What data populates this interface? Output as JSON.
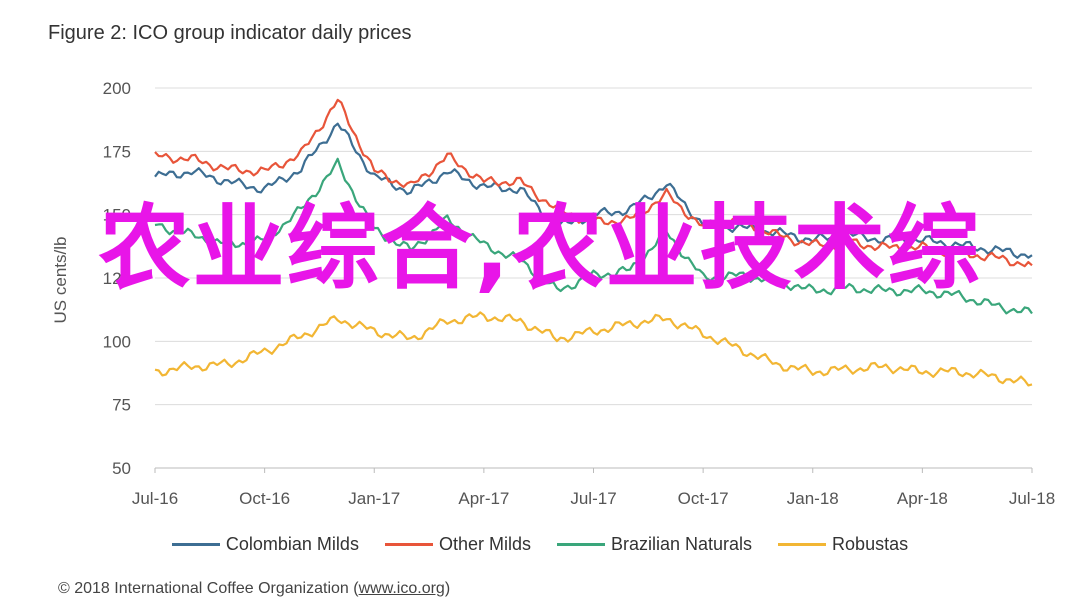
{
  "overlay_text": "农业综合,农业技术综",
  "copyright": {
    "prefix": "© 2018 International Coffee Organization (",
    "link": "www.ico.org",
    "suffix": ")"
  },
  "chart_data": {
    "type": "line",
    "title": "Figure 2: ICO group indicator daily prices",
    "ylabel": "US cents/lb",
    "ylim": [
      50,
      200
    ],
    "yticks": [
      50,
      75,
      100,
      125,
      150,
      175,
      200
    ],
    "grid": true,
    "legend_position": "bottom",
    "x_tick_labels": [
      "Jul-16",
      "Oct-16",
      "Jan-17",
      "Apr-17",
      "Jul-17",
      "Oct-17",
      "Jan-18",
      "Apr-18",
      "Jul-18"
    ],
    "x": [
      "Jul-16",
      "Aug-16",
      "Sep-16",
      "Oct-16",
      "Nov-16",
      "Dec-16",
      "Jan-17",
      "Feb-17",
      "Mar-17",
      "Apr-17",
      "May-17",
      "Jun-17",
      "Jul-17",
      "Aug-17",
      "Sep-17",
      "Oct-17",
      "Nov-17",
      "Dec-17",
      "Jan-18",
      "Feb-18",
      "Mar-18",
      "Apr-18",
      "May-18",
      "Jun-18",
      "Jul-18"
    ],
    "series": [
      {
        "name": "Colombian Milds",
        "color": "#3d6e93",
        "values": [
          165,
          167,
          163,
          160,
          168,
          186,
          165,
          159,
          167,
          161,
          160,
          145,
          150,
          152,
          162,
          146,
          145,
          143,
          140,
          142,
          140,
          140,
          138,
          136,
          134
        ]
      },
      {
        "name": "Other Milds",
        "color": "#e8553a",
        "values": [
          173,
          172,
          168,
          167,
          174,
          195,
          167,
          161,
          173,
          163,
          163,
          152,
          147,
          148,
          158,
          145,
          148,
          142,
          138,
          139,
          137,
          137,
          135,
          133,
          130
        ]
      },
      {
        "name": "Brazilian Naturals",
        "color": "#3aa67b",
        "values": [
          146,
          142,
          138,
          140,
          152,
          170,
          144,
          136,
          148,
          138,
          132,
          120,
          126,
          128,
          143,
          125,
          126,
          124,
          120,
          121,
          120,
          120,
          118,
          114,
          111
        ]
      },
      {
        "name": "Robustas",
        "color": "#f2b634",
        "values": [
          88,
          90,
          91,
          96,
          102,
          109,
          104,
          101,
          108,
          110,
          108,
          101,
          104,
          107,
          109,
          103,
          97,
          91,
          88,
          89,
          90,
          88,
          88,
          86,
          83
        ]
      }
    ]
  }
}
